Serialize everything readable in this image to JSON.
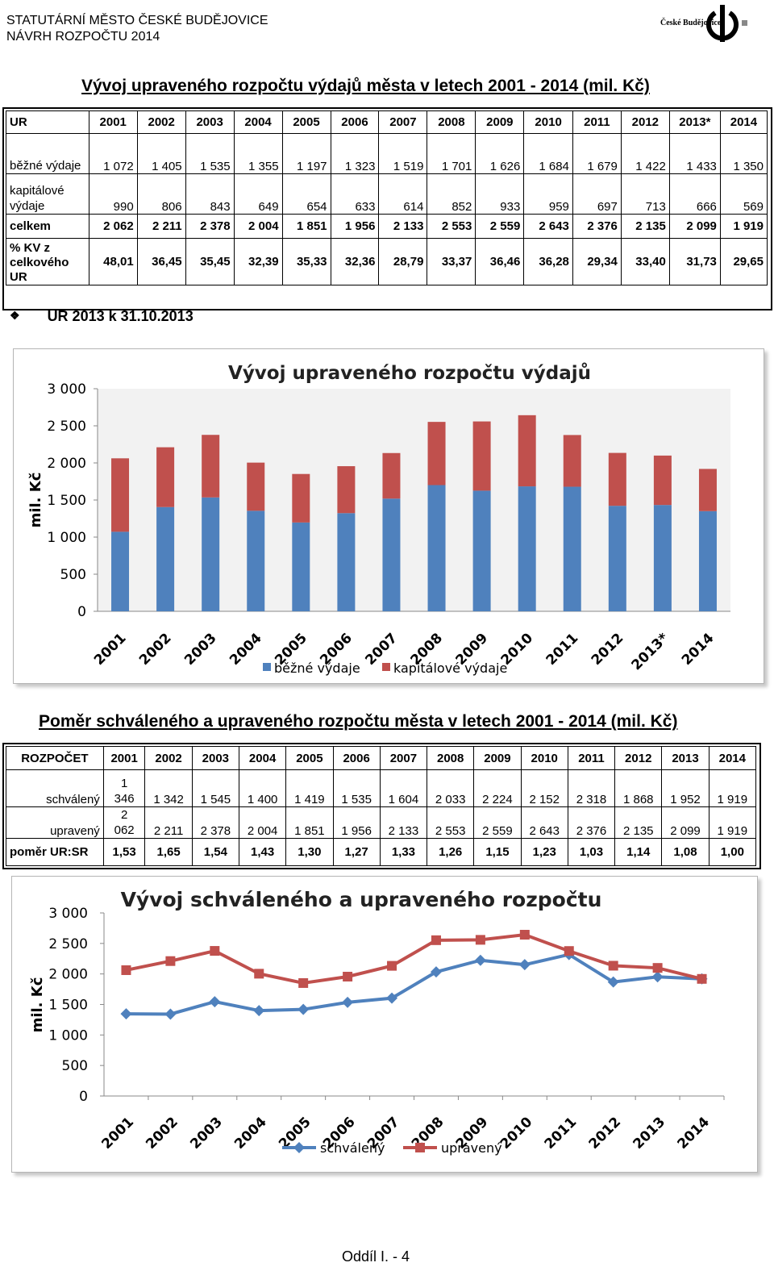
{
  "header": {
    "line1": "STATUTÁRNÍ MĚSTO ČESKÉ BUDĚJOVICE",
    "line2": "NÁVRH ROZPOČTU 2014",
    "logo_text": "České Budějovice"
  },
  "section1": {
    "title": "Vývoj upraveného rozpočtu výdajů města v letech 2001 - 2014 (mil. Kč)",
    "table": {
      "header": [
        "UR",
        "2001",
        "2002",
        "2003",
        "2004",
        "2005",
        "2006",
        "2007",
        "2008",
        "2009",
        "2010",
        "2011",
        "2012",
        "2013*",
        "2014"
      ],
      "rows": [
        {
          "label": "běžné výdaje",
          "values": [
            "1 072",
            "1 405",
            "1 535",
            "1 355",
            "1 197",
            "1 323",
            "1 519",
            "1 701",
            "1 626",
            "1 684",
            "1 679",
            "1 422",
            "1 433",
            "1 350"
          ]
        },
        {
          "label": "kapitálové výdaje",
          "values": [
            "990",
            "806",
            "843",
            "649",
            "654",
            "633",
            "614",
            "852",
            "933",
            "959",
            "697",
            "713",
            "666",
            "569"
          ]
        },
        {
          "label": "celkem",
          "values": [
            "2 062",
            "2 211",
            "2 378",
            "2 004",
            "1 851",
            "1 956",
            "2 133",
            "2 553",
            "2 559",
            "2 643",
            "2 376",
            "2 135",
            "2 099",
            "1 919"
          ]
        },
        {
          "label": "% KV z celkového UR",
          "values": [
            "48,01",
            "36,45",
            "35,45",
            "32,39",
            "35,33",
            "32,36",
            "28,79",
            "33,37",
            "36,46",
            "36,28",
            "29,34",
            "33,40",
            "31,73",
            "29,65"
          ]
        }
      ]
    },
    "note_icon": "diamond-bullet-icon",
    "note": "UR 2013 k 31.10.2013"
  },
  "chart1": {
    "ylabel": "mil. Kč",
    "chart_data": {
      "type": "bar",
      "stacked": true,
      "title": "Vývoj upraveného rozpočtu výdajů",
      "ylabel": "mil. Kč",
      "ylim": [
        0,
        3000
      ],
      "yticks": [
        "0",
        "500",
        "1 000",
        "1 500",
        "2 000",
        "2 500",
        "3 000"
      ],
      "categories": [
        "2001",
        "2002",
        "2003",
        "2004",
        "2005",
        "2006",
        "2007",
        "2008",
        "2009",
        "2010",
        "2011",
        "2012",
        "2013*",
        "2014"
      ],
      "series": [
        {
          "name": "běžné výdaje",
          "color": "#4f81bd",
          "values": [
            1072,
            1405,
            1535,
            1355,
            1197,
            1323,
            1519,
            1701,
            1626,
            1684,
            1679,
            1422,
            1433,
            1350
          ]
        },
        {
          "name": "kapitálové výdaje",
          "color": "#c0504d",
          "values": [
            990,
            806,
            843,
            649,
            654,
            633,
            614,
            852,
            933,
            959,
            697,
            713,
            666,
            569
          ]
        }
      ],
      "legend": "bottom"
    }
  },
  "section2": {
    "title": "Poměr schváleného a upraveného rozpočtu města v letech 2001 - 2014 (mil. Kč)",
    "table": {
      "header": [
        "ROZPOČET",
        "2001",
        "2002",
        "2003",
        "2004",
        "2005",
        "2006",
        "2007",
        "2008",
        "2009",
        "2010",
        "2011",
        "2012",
        "2013",
        "2014"
      ],
      "rows": [
        {
          "label": "schválený",
          "first_top": "1",
          "first_bottom": "346",
          "values": [
            "1 342",
            "1 545",
            "1 400",
            "1 419",
            "1 535",
            "1 604",
            "2 033",
            "2 224",
            "2 152",
            "2 318",
            "1 868",
            "1 952",
            "1 919"
          ]
        },
        {
          "label": "upravený",
          "first_top": "2",
          "first_bottom": "062",
          "values": [
            "2 211",
            "2 378",
            "2 004",
            "1 851",
            "1 956",
            "2 133",
            "2 553",
            "2 559",
            "2 643",
            "2 376",
            "2 135",
            "2 099",
            "1 919"
          ]
        },
        {
          "label": "poměr UR:SR",
          "values": [
            "1,53",
            "1,65",
            "1,54",
            "1,43",
            "1,30",
            "1,27",
            "1,33",
            "1,26",
            "1,15",
            "1,23",
            "1,03",
            "1,14",
            "1,08",
            "1,00"
          ]
        }
      ]
    }
  },
  "chart2": {
    "ylabel": "mil. Kč",
    "chart_data": {
      "type": "line",
      "title": "Vývoj schváleného a upraveného rozpočtu",
      "ylabel": "mil. Kč",
      "ylim": [
        0,
        3000
      ],
      "yticks": [
        "0",
        "500",
        "1 000",
        "1 500",
        "2 000",
        "2 500",
        "3 000"
      ],
      "categories": [
        "2001",
        "2002",
        "2003",
        "2004",
        "2005",
        "2006",
        "2007",
        "2008",
        "2009",
        "2010",
        "2011",
        "2012",
        "2013",
        "2014"
      ],
      "series": [
        {
          "name": "schválený",
          "color": "#4f81bd",
          "marker": "diamond",
          "values": [
            1346,
            1342,
            1545,
            1400,
            1419,
            1535,
            1604,
            2033,
            2224,
            2152,
            2318,
            1868,
            1952,
            1919
          ]
        },
        {
          "name": "upravený",
          "color": "#c0504d",
          "marker": "square",
          "values": [
            2062,
            2211,
            2378,
            2004,
            1851,
            1956,
            2133,
            2553,
            2559,
            2643,
            2376,
            2135,
            2099,
            1919
          ]
        }
      ],
      "legend": "bottom"
    }
  },
  "footer": {
    "page": "Oddíl I. - 4"
  }
}
